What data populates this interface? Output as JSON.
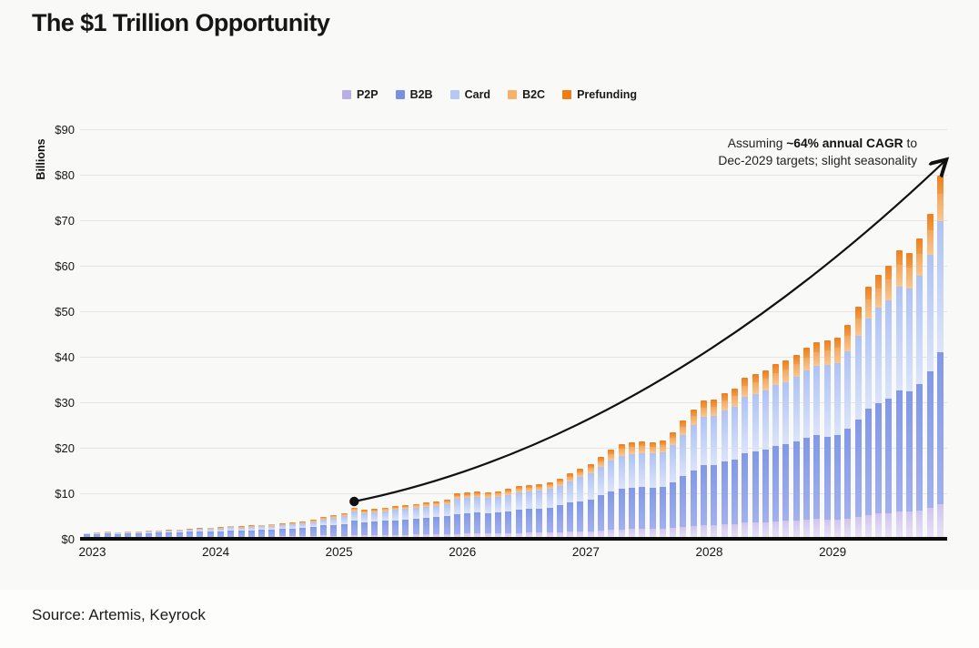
{
  "title": "The $1 Trillion Opportunity",
  "source": "Source: Artemis, Keyrock",
  "colors": {
    "background": "#f9f9f7",
    "axis": "#0d0d0d",
    "gridline": "#e6e5e1",
    "trend_line": "#111111"
  },
  "chart_data": {
    "type": "bar",
    "stacked": true,
    "title": "The $1 Trillion Opportunity",
    "ylabel": "Billions",
    "unit": "USD billions",
    "ylim": [
      0,
      90
    ],
    "y_tick_labels": [
      "$0",
      "$10",
      "$20",
      "$30",
      "$40",
      "$50",
      "$60",
      "$70",
      "$80",
      "$90"
    ],
    "x_tick_labels": [
      "2023",
      "2024",
      "2025",
      "2026",
      "2027",
      "2028",
      "2029"
    ],
    "frequency": "monthly",
    "x_start": "2023-01",
    "x_end": "2029-12",
    "grid": "horizontal",
    "legend_position": "top-center",
    "legend": [
      {
        "name": "P2P",
        "color": "#b9aee6"
      },
      {
        "name": "B2B",
        "color": "#7790e4"
      },
      {
        "name": "Card",
        "color": "#b7c8f6"
      },
      {
        "name": "B2C",
        "color": "#f6b26b"
      },
      {
        "name": "Prefunding",
        "color": "#f07c15"
      }
    ],
    "totals_monthly_billions": [
      1.3,
      1.4,
      1.6,
      1.5,
      1.6,
      1.7,
      1.8,
      1.9,
      2.0,
      2.1,
      2.2,
      2.4,
      2.5,
      2.6,
      2.9,
      2.8,
      3.0,
      3.1,
      3.3,
      3.4,
      3.6,
      3.8,
      4.2,
      4.8,
      5.2,
      5.6,
      6.9,
      6.4,
      6.6,
      6.9,
      7.2,
      7.4,
      7.7,
      8.0,
      8.3,
      8.7,
      10.0,
      10.2,
      10.4,
      10.3,
      10.5,
      11.0,
      11.6,
      11.9,
      12.1,
      12.5,
      13.3,
      14.4,
      15.4,
      16.4,
      18.0,
      19.6,
      20.8,
      21.2,
      21.4,
      21.3,
      21.6,
      23.4,
      26.0,
      28.4,
      30.4,
      30.6,
      32.0,
      33.0,
      35.4,
      36.2,
      37.0,
      38.4,
      39.2,
      40.4,
      42.0,
      43.2,
      43.6,
      44.2,
      47.0,
      51.0,
      55.4,
      58.0,
      60.0,
      63.4,
      62.8,
      66.0,
      71.4,
      79.8
    ],
    "segment_shares_by_year": {
      "2023": {
        "P2P": 0.18,
        "B2B": 0.52,
        "Card": 0.18,
        "B2C": 0.07,
        "Prefunding": 0.05
      },
      "2024": {
        "P2P": 0.15,
        "B2B": 0.48,
        "Card": 0.25,
        "B2C": 0.07,
        "Prefunding": 0.05
      },
      "2025": {
        "P2P": 0.12,
        "B2B": 0.45,
        "Card": 0.31,
        "B2C": 0.07,
        "Prefunding": 0.05
      },
      "2026": {
        "P2P": 0.11,
        "B2B": 0.44,
        "Card": 0.33,
        "B2C": 0.07,
        "Prefunding": 0.05
      },
      "2027": {
        "P2P": 0.1,
        "B2B": 0.43,
        "Card": 0.35,
        "B2C": 0.07,
        "Prefunding": 0.05
      },
      "2028": {
        "P2P": 0.1,
        "B2B": 0.43,
        "Card": 0.35,
        "B2C": 0.07,
        "Prefunding": 0.05
      },
      "2029": {
        "P2P": 0.095,
        "B2B": 0.42,
        "Card": 0.36,
        "B2C": 0.075,
        "Prefunding": 0.05
      }
    },
    "annotation": {
      "line1_prefix": "Assuming ",
      "line1_bold": "~64% annual CAGR",
      "line1_suffix": " to",
      "line2": "Dec-2029 targets; slight seasonality"
    },
    "trend": {
      "shape": "accelerating curve with arrowhead",
      "start": {
        "month": "2025-03",
        "month_index": 26,
        "value_billions": 8.2,
        "marker": "dot"
      },
      "end": {
        "month": "2029-12",
        "month_index": 83,
        "value_billions": 83,
        "marker": "arrow"
      }
    }
  }
}
